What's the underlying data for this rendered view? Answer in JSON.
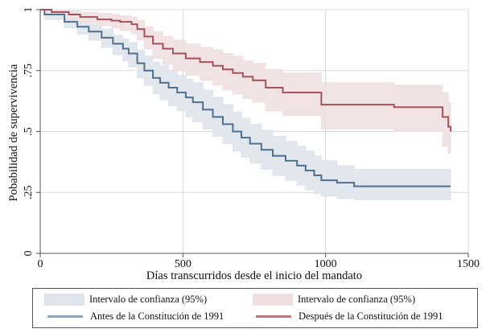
{
  "chart_data": {
    "type": "line",
    "subtype": "kaplan-meier step survival curves with 95% confidence bands",
    "title": "",
    "xlabel": "Días transcurridos desde el inicio del mandato",
    "ylabel": "Pobabilidad de supervivencia",
    "xlim": [
      0,
      1500
    ],
    "ylim": [
      0,
      1
    ],
    "xticks": [
      0,
      500,
      1000,
      1500
    ],
    "xtick_labels": [
      "0",
      "500",
      "1000",
      "1500"
    ],
    "yticks": [
      0,
      0.25,
      0.5,
      0.75,
      1
    ],
    "ytick_labels": [
      "0",
      ".25",
      ".5",
      ".75",
      "1"
    ],
    "grid": true,
    "legend_position": "bottom",
    "colors": {
      "before_line": "#4f6f8f",
      "before_band": "#dfe4ec",
      "after_line": "#a4535c",
      "after_band": "#f0dfe0",
      "axis": "#555555",
      "grid": "#d9d9d9"
    },
    "series": [
      {
        "name": "Antes de la Constitución de 1991",
        "band_name": "Intervalo de confianza (95%)",
        "x": [
          0,
          15,
          85,
          130,
          170,
          215,
          255,
          290,
          310,
          340,
          365,
          395,
          420,
          450,
          480,
          510,
          535,
          570,
          605,
          640,
          675,
          705,
          735,
          775,
          815,
          860,
          900,
          930,
          960,
          985,
          1040,
          1100,
          1438
        ],
        "y": [
          1.0,
          0.98,
          0.95,
          0.93,
          0.91,
          0.885,
          0.86,
          0.84,
          0.82,
          0.78,
          0.75,
          0.72,
          0.7,
          0.68,
          0.66,
          0.64,
          0.62,
          0.59,
          0.56,
          0.53,
          0.5,
          0.475,
          0.45,
          0.425,
          0.4,
          0.38,
          0.36,
          0.34,
          0.32,
          0.3,
          0.29,
          0.275,
          0.275
        ],
        "lower": [
          1.0,
          0.96,
          0.925,
          0.9,
          0.875,
          0.845,
          0.815,
          0.79,
          0.765,
          0.72,
          0.69,
          0.655,
          0.63,
          0.605,
          0.585,
          0.56,
          0.54,
          0.51,
          0.48,
          0.45,
          0.42,
          0.395,
          0.37,
          0.345,
          0.32,
          0.3,
          0.28,
          0.26,
          0.245,
          0.235,
          0.225,
          0.22,
          0.22
        ],
        "upper": [
          1.0,
          0.995,
          0.97,
          0.955,
          0.94,
          0.92,
          0.895,
          0.88,
          0.865,
          0.835,
          0.81,
          0.785,
          0.77,
          0.75,
          0.73,
          0.715,
          0.7,
          0.67,
          0.64,
          0.61,
          0.58,
          0.555,
          0.53,
          0.505,
          0.48,
          0.46,
          0.44,
          0.42,
          0.4,
          0.38,
          0.36,
          0.345,
          0.345
        ]
      },
      {
        "name": "Después de la Constitución de 1991",
        "band_name": "Intervalo de confianza (95%)",
        "x": [
          0,
          40,
          100,
          140,
          200,
          250,
          280,
          320,
          340,
          365,
          395,
          430,
          465,
          510,
          560,
          605,
          640,
          675,
          710,
          745,
          790,
          850,
          985,
          1240,
          1410,
          1430,
          1438
        ],
        "y": [
          1.0,
          0.99,
          0.98,
          0.97,
          0.96,
          0.955,
          0.95,
          0.94,
          0.92,
          0.89,
          0.86,
          0.84,
          0.82,
          0.8,
          0.785,
          0.77,
          0.755,
          0.74,
          0.725,
          0.71,
          0.68,
          0.66,
          0.61,
          0.6,
          0.56,
          0.52,
          0.5
        ],
        "lower": [
          1.0,
          0.975,
          0.96,
          0.945,
          0.935,
          0.925,
          0.915,
          0.9,
          0.875,
          0.84,
          0.8,
          0.775,
          0.75,
          0.73,
          0.71,
          0.69,
          0.67,
          0.655,
          0.635,
          0.62,
          0.585,
          0.565,
          0.51,
          0.5,
          0.44,
          0.41,
          0.41
        ],
        "upper": [
          1.0,
          1.0,
          0.995,
          0.99,
          0.985,
          0.98,
          0.975,
          0.97,
          0.955,
          0.93,
          0.91,
          0.89,
          0.875,
          0.86,
          0.845,
          0.835,
          0.82,
          0.81,
          0.79,
          0.78,
          0.755,
          0.74,
          0.7,
          0.69,
          0.66,
          0.62,
          0.6
        ]
      }
    ]
  },
  "legend": {
    "items": [
      {
        "label": "Intervalo de confianza (95%)",
        "kind": "band",
        "series": "before"
      },
      {
        "label": "Intervalo de confianza (95%)",
        "kind": "band",
        "series": "after"
      },
      {
        "label": "Antes de la Constitución de 1991",
        "kind": "line",
        "series": "before"
      },
      {
        "label": "Después de la Constitución de 1991",
        "kind": "line",
        "series": "after"
      }
    ]
  }
}
